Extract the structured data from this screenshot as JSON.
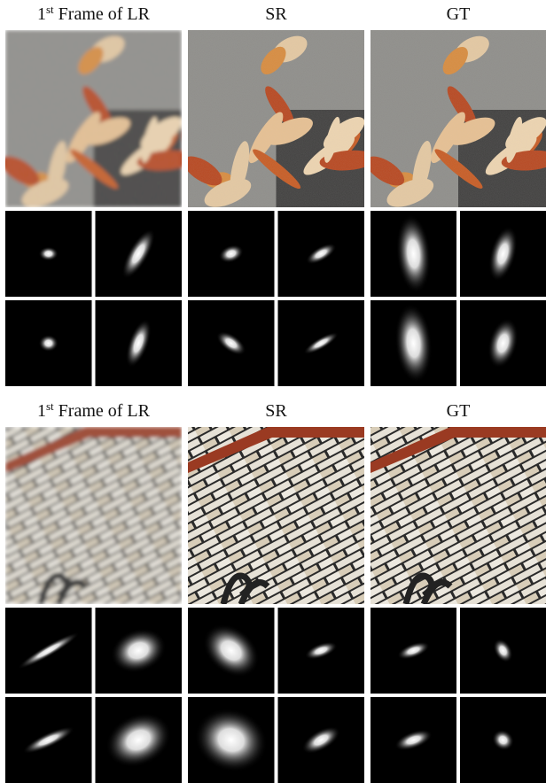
{
  "sections": [
    {
      "headers": [
        {
          "number": "1",
          "superscript": "st",
          "text": "Frame of LR"
        },
        {
          "text": "SR"
        },
        {
          "text": "GT"
        }
      ]
    },
    {
      "headers": [
        {
          "number": "1",
          "superscript": "st",
          "text": "Frame of LR"
        },
        {
          "text": "SR"
        },
        {
          "text": "GT"
        }
      ]
    }
  ]
}
